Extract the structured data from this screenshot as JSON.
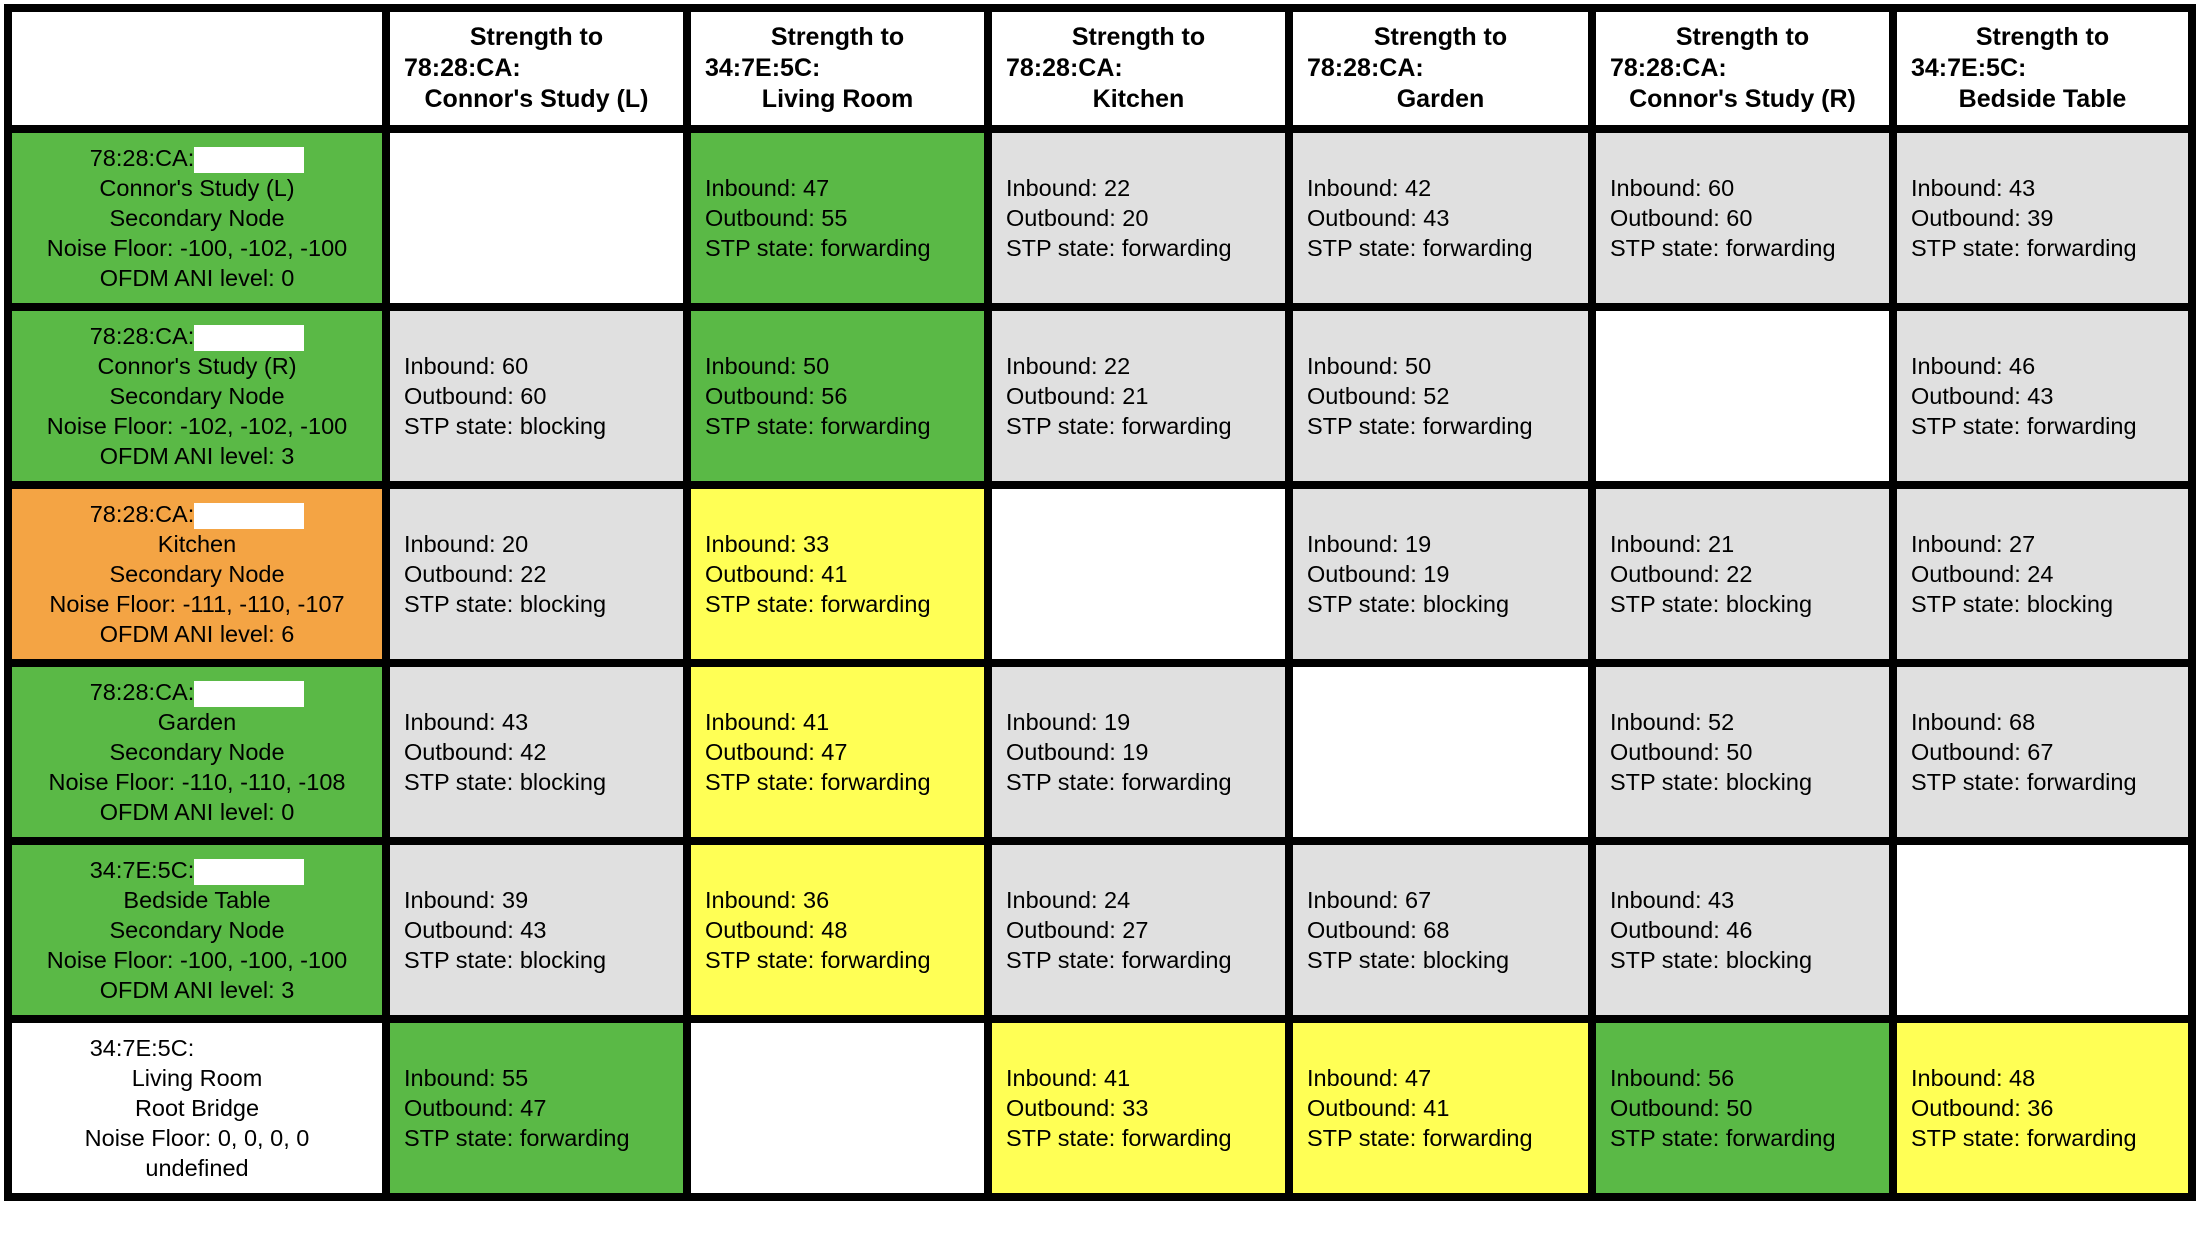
{
  "header_prefix": "Strength to",
  "columns": [
    {
      "mac": "78:28:CA:",
      "name": "Connor's Study (L)"
    },
    {
      "mac": "34:7E:5C:",
      "name": "Living Room"
    },
    {
      "mac": "78:28:CA:",
      "name": "Kitchen"
    },
    {
      "mac": "78:28:CA:",
      "name": "Garden"
    },
    {
      "mac": "78:28:CA:",
      "name": "Connor's Study (R)"
    },
    {
      "mac": "34:7E:5C:",
      "name": "Bedside Table"
    }
  ],
  "colors": {
    "good": "#5ab946",
    "neutral": "#e0e0e0",
    "warn": "#ffff55",
    "bad": "#f4a444",
    "none": "#ffffff"
  },
  "rows": [
    {
      "mac": "78:28:CA:",
      "name": "Connor's Study (L)",
      "role": "Secondary Node",
      "noise": "Noise Floor: -100, -102, -100",
      "ani": "OFDM ANI level: 0",
      "color": "green",
      "cells": [
        null,
        {
          "color": "green",
          "in": "Inbound: 47",
          "out": "Outbound: 55",
          "stp": "STP state: forwarding"
        },
        {
          "color": "gray",
          "in": "Inbound: 22",
          "out": "Outbound: 20",
          "stp": "STP state: forwarding"
        },
        {
          "color": "gray",
          "in": "Inbound: 42",
          "out": "Outbound: 43",
          "stp": "STP state: forwarding"
        },
        {
          "color": "gray",
          "in": "Inbound: 60",
          "out": "Outbound: 60",
          "stp": "STP state: forwarding"
        },
        {
          "color": "gray",
          "in": "Inbound: 43",
          "out": "Outbound: 39",
          "stp": "STP state: forwarding"
        }
      ]
    },
    {
      "mac": "78:28:CA:",
      "name": "Connor's Study (R)",
      "role": "Secondary Node",
      "noise": "Noise Floor: -102, -102, -100",
      "ani": "OFDM ANI level: 3",
      "color": "green",
      "cells": [
        {
          "color": "gray",
          "in": "Inbound: 60",
          "out": "Outbound: 60",
          "stp": "STP state: blocking"
        },
        {
          "color": "green",
          "in": "Inbound: 50",
          "out": "Outbound: 56",
          "stp": "STP state: forwarding"
        },
        {
          "color": "gray",
          "in": "Inbound: 22",
          "out": "Outbound: 21",
          "stp": "STP state: forwarding"
        },
        {
          "color": "gray",
          "in": "Inbound: 50",
          "out": "Outbound: 52",
          "stp": "STP state: forwarding"
        },
        null,
        {
          "color": "gray",
          "in": "Inbound: 46",
          "out": "Outbound: 43",
          "stp": "STP state: forwarding"
        }
      ]
    },
    {
      "mac": "78:28:CA:",
      "name": "Kitchen",
      "role": "Secondary Node",
      "noise": "Noise Floor: -111, -110, -107",
      "ani": "OFDM ANI level: 6",
      "color": "orange",
      "cells": [
        {
          "color": "gray",
          "in": "Inbound: 20",
          "out": "Outbound: 22",
          "stp": "STP state: blocking"
        },
        {
          "color": "yellow",
          "in": "Inbound: 33",
          "out": "Outbound: 41",
          "stp": "STP state: forwarding"
        },
        null,
        {
          "color": "gray",
          "in": "Inbound: 19",
          "out": "Outbound: 19",
          "stp": "STP state: blocking"
        },
        {
          "color": "gray",
          "in": "Inbound: 21",
          "out": "Outbound: 22",
          "stp": "STP state: blocking"
        },
        {
          "color": "gray",
          "in": "Inbound: 27",
          "out": "Outbound: 24",
          "stp": "STP state: blocking"
        }
      ]
    },
    {
      "mac": "78:28:CA:",
      "name": "Garden",
      "role": "Secondary Node",
      "noise": "Noise Floor: -110, -110, -108",
      "ani": "OFDM ANI level: 0",
      "color": "green",
      "cells": [
        {
          "color": "gray",
          "in": "Inbound: 43",
          "out": "Outbound: 42",
          "stp": "STP state: blocking"
        },
        {
          "color": "yellow",
          "in": "Inbound: 41",
          "out": "Outbound: 47",
          "stp": "STP state: forwarding"
        },
        {
          "color": "gray",
          "in": "Inbound: 19",
          "out": "Outbound: 19",
          "stp": "STP state: forwarding"
        },
        null,
        {
          "color": "gray",
          "in": "Inbound: 52",
          "out": "Outbound: 50",
          "stp": "STP state: blocking"
        },
        {
          "color": "gray",
          "in": "Inbound: 68",
          "out": "Outbound: 67",
          "stp": "STP state: forwarding"
        }
      ]
    },
    {
      "mac": "34:7E:5C:",
      "name": "Bedside Table",
      "role": "Secondary Node",
      "noise": "Noise Floor: -100, -100, -100",
      "ani": "OFDM ANI level: 3",
      "color": "green",
      "cells": [
        {
          "color": "gray",
          "in": "Inbound: 39",
          "out": "Outbound: 43",
          "stp": "STP state: blocking"
        },
        {
          "color": "yellow",
          "in": "Inbound: 36",
          "out": "Outbound: 48",
          "stp": "STP state: forwarding"
        },
        {
          "color": "gray",
          "in": "Inbound: 24",
          "out": "Outbound: 27",
          "stp": "STP state: forwarding"
        },
        {
          "color": "gray",
          "in": "Inbound: 67",
          "out": "Outbound: 68",
          "stp": "STP state: blocking"
        },
        {
          "color": "gray",
          "in": "Inbound: 43",
          "out": "Outbound: 46",
          "stp": "STP state: blocking"
        },
        null
      ]
    },
    {
      "mac": "34:7E:5C:",
      "name": "Living Room",
      "role": "Root Bridge",
      "noise": "Noise Floor: 0, 0, 0, 0",
      "ani": "undefined",
      "color": "white",
      "cells": [
        {
          "color": "green",
          "in": "Inbound: 55",
          "out": "Outbound: 47",
          "stp": "STP state: forwarding"
        },
        null,
        {
          "color": "yellow",
          "in": "Inbound: 41",
          "out": "Outbound: 33",
          "stp": "STP state: forwarding"
        },
        {
          "color": "yellow",
          "in": "Inbound: 47",
          "out": "Outbound: 41",
          "stp": "STP state: forwarding"
        },
        {
          "color": "green",
          "in": "Inbound: 56",
          "out": "Outbound: 50",
          "stp": "STP state: forwarding"
        },
        {
          "color": "yellow",
          "in": "Inbound: 48",
          "out": "Outbound: 36",
          "stp": "STP state: forwarding"
        }
      ]
    }
  ]
}
